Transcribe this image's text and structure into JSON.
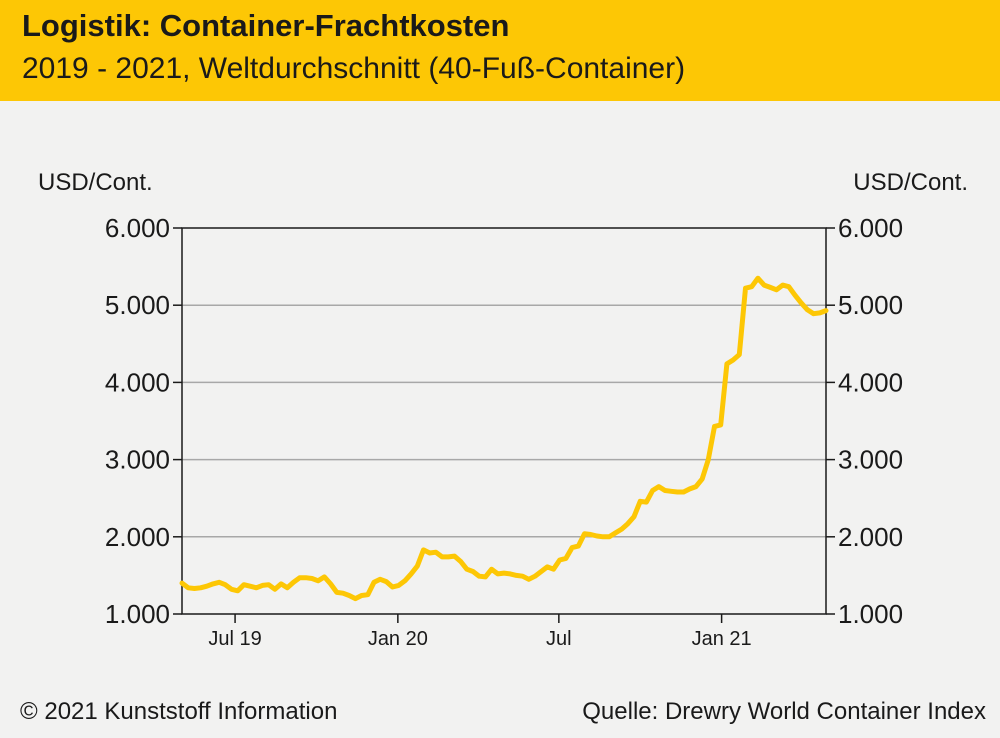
{
  "header": {
    "title": "Logistik: Container-Frachtkosten",
    "subtitle": "2019 - 2021, Weltdurchschnitt (40-Fuß-Container)"
  },
  "footer": {
    "copyright": "© 2021 Kunststoff Information",
    "source": "Quelle: Drewry World Container Index"
  },
  "colors": {
    "header_bg": "#fdc705",
    "line": "#fdc705",
    "grid": "#a8a8a8",
    "axis": "#1a1a1a",
    "background": "#f2f2f1"
  },
  "chart_data": {
    "type": "line",
    "ylabel_left": "USD/Cont.",
    "ylabel_right": "USD/Cont.",
    "ylim": [
      1000,
      6000
    ],
    "yticks": [
      6000,
      5000,
      4000,
      3000,
      2000,
      1000
    ],
    "ytick_labels": [
      "6.000",
      "5.000",
      "4.000",
      "3.000",
      "2.000",
      "1.000"
    ],
    "grid": "horizontal",
    "x_range": [
      "2019-05-02",
      "2021-04-29"
    ],
    "xticks": [
      {
        "date": "2019-07-01",
        "label": "Jul 19"
      },
      {
        "date": "2020-01-01",
        "label": "Jan 20"
      },
      {
        "date": "2020-07-01",
        "label": "Jul"
      },
      {
        "date": "2021-01-01",
        "label": "Jan 21"
      }
    ],
    "series": [
      {
        "values": [
          [
            "2019-05-02",
            1400
          ],
          [
            "2019-05-09",
            1340
          ],
          [
            "2019-05-16",
            1330
          ],
          [
            "2019-05-23",
            1340
          ],
          [
            "2019-05-30",
            1360
          ],
          [
            "2019-06-06",
            1390
          ],
          [
            "2019-06-13",
            1410
          ],
          [
            "2019-06-20",
            1380
          ],
          [
            "2019-06-27",
            1320
          ],
          [
            "2019-07-04",
            1300
          ],
          [
            "2019-07-11",
            1380
          ],
          [
            "2019-07-18",
            1360
          ],
          [
            "2019-07-25",
            1340
          ],
          [
            "2019-08-01",
            1370
          ],
          [
            "2019-08-08",
            1380
          ],
          [
            "2019-08-15",
            1320
          ],
          [
            "2019-08-22",
            1390
          ],
          [
            "2019-08-29",
            1340
          ],
          [
            "2019-09-05",
            1410
          ],
          [
            "2019-09-12",
            1470
          ],
          [
            "2019-09-19",
            1470
          ],
          [
            "2019-09-26",
            1460
          ],
          [
            "2019-10-03",
            1430
          ],
          [
            "2019-10-10",
            1480
          ],
          [
            "2019-10-17",
            1390
          ],
          [
            "2019-10-24",
            1280
          ],
          [
            "2019-10-31",
            1270
          ],
          [
            "2019-11-07",
            1240
          ],
          [
            "2019-11-14",
            1200
          ],
          [
            "2019-11-21",
            1240
          ],
          [
            "2019-11-28",
            1250
          ],
          [
            "2019-12-05",
            1410
          ],
          [
            "2019-12-12",
            1450
          ],
          [
            "2019-12-19",
            1420
          ],
          [
            "2019-12-26",
            1350
          ],
          [
            "2020-01-02",
            1370
          ],
          [
            "2020-01-09",
            1430
          ],
          [
            "2020-01-16",
            1520
          ],
          [
            "2020-01-23",
            1620
          ],
          [
            "2020-01-30",
            1830
          ],
          [
            "2020-02-06",
            1790
          ],
          [
            "2020-02-13",
            1800
          ],
          [
            "2020-02-20",
            1740
          ],
          [
            "2020-02-27",
            1740
          ],
          [
            "2020-03-05",
            1750
          ],
          [
            "2020-03-12",
            1680
          ],
          [
            "2020-03-19",
            1580
          ],
          [
            "2020-03-26",
            1550
          ],
          [
            "2020-04-02",
            1490
          ],
          [
            "2020-04-09",
            1480
          ],
          [
            "2020-04-16",
            1580
          ],
          [
            "2020-04-23",
            1520
          ],
          [
            "2020-04-30",
            1530
          ],
          [
            "2020-05-07",
            1520
          ],
          [
            "2020-05-14",
            1500
          ],
          [
            "2020-05-21",
            1490
          ],
          [
            "2020-05-28",
            1450
          ],
          [
            "2020-06-04",
            1490
          ],
          [
            "2020-06-11",
            1550
          ],
          [
            "2020-06-18",
            1610
          ],
          [
            "2020-06-25",
            1580
          ],
          [
            "2020-07-02",
            1700
          ],
          [
            "2020-07-09",
            1720
          ],
          [
            "2020-07-16",
            1860
          ],
          [
            "2020-07-23",
            1880
          ],
          [
            "2020-07-30",
            2040
          ],
          [
            "2020-08-06",
            2030
          ],
          [
            "2020-08-13",
            2010
          ],
          [
            "2020-08-20",
            2000
          ],
          [
            "2020-08-27",
            2000
          ],
          [
            "2020-09-03",
            2050
          ],
          [
            "2020-09-10",
            2100
          ],
          [
            "2020-09-17",
            2170
          ],
          [
            "2020-09-24",
            2260
          ],
          [
            "2020-10-01",
            2460
          ],
          [
            "2020-10-08",
            2450
          ],
          [
            "2020-10-15",
            2600
          ],
          [
            "2020-10-22",
            2650
          ],
          [
            "2020-10-29",
            2600
          ],
          [
            "2020-11-05",
            2590
          ],
          [
            "2020-11-12",
            2580
          ],
          [
            "2020-11-19",
            2580
          ],
          [
            "2020-11-26",
            2620
          ],
          [
            "2020-12-03",
            2650
          ],
          [
            "2020-12-10",
            2750
          ],
          [
            "2020-12-17",
            3000
          ],
          [
            "2020-12-24",
            3430
          ],
          [
            "2020-12-31",
            3450
          ],
          [
            "2021-01-07",
            4240
          ],
          [
            "2021-01-14",
            4290
          ],
          [
            "2021-01-21",
            4360
          ],
          [
            "2021-01-28",
            5220
          ],
          [
            "2021-02-04",
            5240
          ],
          [
            "2021-02-11",
            5350
          ],
          [
            "2021-02-18",
            5260
          ],
          [
            "2021-02-25",
            5230
          ],
          [
            "2021-03-04",
            5200
          ],
          [
            "2021-03-11",
            5260
          ],
          [
            "2021-03-18",
            5240
          ],
          [
            "2021-03-25",
            5130
          ],
          [
            "2021-04-01",
            5030
          ],
          [
            "2021-04-08",
            4940
          ],
          [
            "2021-04-15",
            4890
          ],
          [
            "2021-04-22",
            4900
          ],
          [
            "2021-04-29",
            4930
          ]
        ]
      }
    ]
  }
}
